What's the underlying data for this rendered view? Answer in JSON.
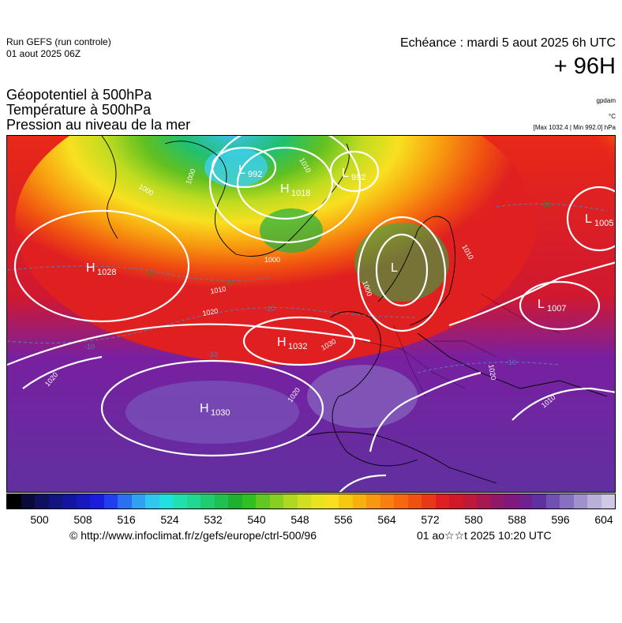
{
  "header": {
    "run_label": "Run GEFS (run controle)",
    "run_date": "01 aout 2025 06Z",
    "echeance": "Echéance : mardi 5 aout 2025 6h UTC",
    "horizon": "+ 96H"
  },
  "titles": {
    "line1": "Géopotentiel à 500hPa",
    "line2": "Température à 500hPa",
    "line3": "Pression au niveau de la mer"
  },
  "units": {
    "geopotential": "gpdam",
    "temperature": "°C",
    "pressure": "[Max 1032.4 | Min 992.0] hPa"
  },
  "map": {
    "pressure_centers": [
      {
        "type": "L",
        "value": "992"
      },
      {
        "type": "H",
        "value": "1018"
      },
      {
        "type": "L",
        "value": "992"
      },
      {
        "type": "L",
        "value": "1005"
      },
      {
        "type": "H",
        "value": "1028"
      },
      {
        "type": "L",
        "value": ""
      },
      {
        "type": "L",
        "value": "1007"
      },
      {
        "type": "H",
        "value": "1032"
      },
      {
        "type": "H",
        "value": "1030"
      }
    ],
    "isobar_labels": [
      "1010",
      "1000",
      "1000",
      "1010",
      "1000",
      "1010",
      "1020",
      "1030",
      "1020",
      "1020",
      "1010",
      "1020",
      "1000"
    ],
    "isotherm_labels": [
      "-20",
      "-20",
      "-20",
      "-10",
      "-10",
      "-10",
      "-10"
    ]
  },
  "colorbar": {
    "ticks": [
      "500",
      "508",
      "516",
      "524",
      "532",
      "540",
      "548",
      "556",
      "564",
      "572",
      "580",
      "588",
      "596",
      "604"
    ],
    "colors": [
      "#000000",
      "#0a0a3a",
      "#101060",
      "#121480",
      "#1414a0",
      "#1818c0",
      "#1c1cdc",
      "#2040f0",
      "#2a70f0",
      "#30a0f0",
      "#30c8f0",
      "#20e0e0",
      "#20e0b0",
      "#20d890",
      "#20cc70",
      "#20c050",
      "#20b030",
      "#30c020",
      "#60c820",
      "#88d020",
      "#b0d820",
      "#d0e020",
      "#e8e420",
      "#f8e020",
      "#f8c810",
      "#f8b010",
      "#f89810",
      "#f88010",
      "#f86810",
      "#f05010",
      "#e83818",
      "#e02020",
      "#d01828",
      "#c01838",
      "#a81850",
      "#901868",
      "#801880",
      "#702090",
      "#6030a0",
      "#7050b0",
      "#8870c0",
      "#a090cc",
      "#b8b0d8",
      "#d0c8e4"
    ]
  },
  "footer": {
    "copyright": "© http://www.infoclimat.fr/z/gefs/europe/ctrl-500/96",
    "generated": "01 ao☆☆t 2025 10:20 UTC"
  }
}
